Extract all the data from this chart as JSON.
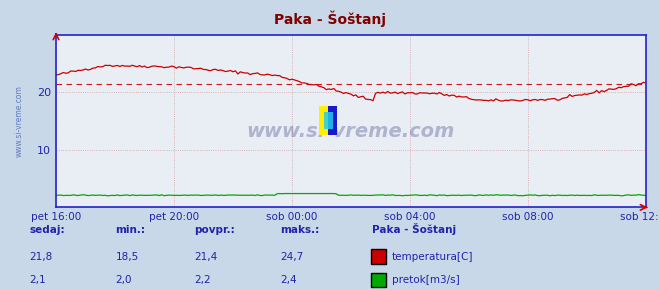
{
  "title": "Paka - Šoštanj",
  "bg_color": "#c8d8e8",
  "plot_bg_color": "#e8eef4",
  "grid_color": "#d0a0a0",
  "axis_color": "#2222cc",
  "title_color": "#800000",
  "label_color": "#2222aa",
  "watermark": "www.si-vreme.com",
  "ylabel_text": "www.si-vreme.com",
  "x_labels": [
    "pet 16:00",
    "pet 20:00",
    "sob 00:00",
    "sob 04:00",
    "sob 08:00",
    "sob 12:00"
  ],
  "x_ticks": [
    0,
    48,
    96,
    144,
    192,
    240
  ],
  "total_points": 241,
  "ylim": [
    0,
    30
  ],
  "yticks": [
    10,
    20
  ],
  "avg_line": 21.4,
  "temp_color": "#cc0000",
  "flow_color": "#00aa00",
  "stats": {
    "sedaj": {
      "temp": "21,8",
      "flow": "2,1"
    },
    "min": {
      "temp": "18,5",
      "flow": "2,0"
    },
    "povpr": {
      "temp": "21,4",
      "flow": "2,2"
    },
    "maks": {
      "temp": "24,7",
      "flow": "2,4"
    }
  },
  "station_label": "Paka - Šoštanj"
}
